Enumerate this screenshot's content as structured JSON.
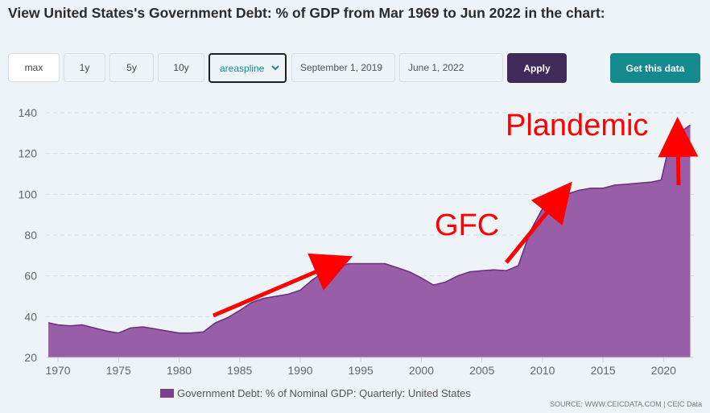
{
  "page": {
    "title": "View United States's Government Debt: % of GDP from Mar 1969 to Jun 2022 in the chart:"
  },
  "controls": {
    "range_buttons": [
      "max",
      "1y",
      "5y",
      "10y"
    ],
    "chart_type": "areaspline",
    "date_from": "September 1, 2019",
    "date_to": "June 1, 2022",
    "apply_label": "Apply",
    "get_data_label": "Get this data"
  },
  "source_text": "SOURCE: WWW.CEICDATA.COM | CEIC Data",
  "colors": {
    "area_fill": "#8e4f9e",
    "area_line": "#6a2d7e",
    "apply_bg": "#3f2a5a",
    "get_data_bg": "#148a8e",
    "annotation": "#ff0000"
  },
  "annotations": {
    "plandemic": "Plandemic",
    "gfc": "GFC"
  },
  "chart_data": {
    "type": "area",
    "title": "",
    "ylim": [
      20,
      140
    ],
    "xlim": [
      1969,
      2022.5
    ],
    "y_ticks": [
      20,
      40,
      60,
      80,
      100,
      120,
      140
    ],
    "x_ticks": [
      1970,
      1975,
      1980,
      1985,
      1990,
      1995,
      2000,
      2005,
      2010,
      2015,
      2020
    ],
    "grid": "horizontal dashed",
    "legend_position": "bottom-center",
    "series": [
      {
        "name": "Government Debt: % of Nominal GDP: Quarterly: United States",
        "x": [
          1969.2,
          1970,
          1971,
          1972,
          1973,
          1974,
          1975,
          1976,
          1977,
          1978,
          1979,
          1980,
          1981,
          1982,
          1983,
          1984,
          1985,
          1986,
          1987,
          1988,
          1989,
          1990,
          1991,
          1992,
          1993,
          1994,
          1995,
          1996,
          1997,
          1998,
          1999,
          2000,
          2001,
          2002,
          2003,
          2004,
          2005,
          2006,
          2007,
          2008,
          2009,
          2010,
          2011,
          2012,
          2013,
          2014,
          2015,
          2016,
          2017,
          2018,
          2019,
          2019.8,
          2020.3,
          2020.6,
          2021,
          2021.5,
          2022.2
        ],
        "values": [
          37,
          36,
          35.5,
          36,
          34.5,
          33,
          32,
          34.5,
          35,
          34,
          33,
          32,
          32,
          32.5,
          37,
          39.5,
          43,
          47,
          49,
          50,
          51,
          53,
          58,
          62,
          64,
          66,
          66,
          66,
          66,
          64,
          62,
          59,
          55.5,
          57,
          60,
          62,
          62.5,
          63,
          62.5,
          65,
          82,
          93,
          96,
          100,
          102,
          103,
          103,
          104.5,
          105,
          105.5,
          106,
          107,
          120,
          128,
          128,
          131,
          134
        ]
      }
    ]
  }
}
